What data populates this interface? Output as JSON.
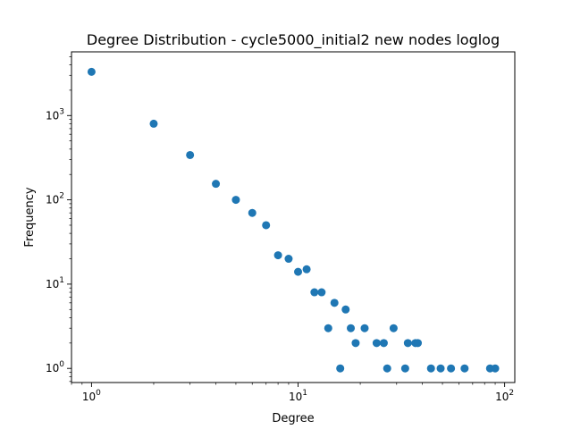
{
  "chart_data": {
    "type": "scatter",
    "title": "Degree Distribution - cycle5000_initial2 new nodes loglog",
    "xlabel": "Degree",
    "ylabel": "Frequency",
    "xscale": "log",
    "yscale": "log",
    "xlim": [
      0.8,
      112
    ],
    "ylim": [
      0.68,
      5700
    ],
    "x_ticks": [
      {
        "value": 1,
        "base": "10",
        "exp": "0"
      },
      {
        "value": 10,
        "base": "10",
        "exp": "1"
      },
      {
        "value": 100,
        "base": "10",
        "exp": "2"
      }
    ],
    "y_ticks": [
      {
        "value": 1,
        "base": "10",
        "exp": "0"
      },
      {
        "value": 10,
        "base": "10",
        "exp": "1"
      },
      {
        "value": 100,
        "base": "10",
        "exp": "2"
      },
      {
        "value": 1000,
        "base": "10",
        "exp": "3"
      }
    ],
    "marker_color": "#1f77b4",
    "grid": false,
    "points": [
      [
        1,
        3300
      ],
      [
        2,
        800
      ],
      [
        3,
        340
      ],
      [
        4,
        155
      ],
      [
        5,
        100
      ],
      [
        6,
        70
      ],
      [
        7,
        50
      ],
      [
        8,
        22
      ],
      [
        9,
        20
      ],
      [
        10,
        14
      ],
      [
        11,
        15
      ],
      [
        12,
        8
      ],
      [
        13,
        8
      ],
      [
        14,
        3
      ],
      [
        15,
        6
      ],
      [
        16,
        1
      ],
      [
        17,
        5
      ],
      [
        18,
        3
      ],
      [
        19,
        2
      ],
      [
        21,
        3
      ],
      [
        24,
        2
      ],
      [
        26,
        2
      ],
      [
        27,
        1
      ],
      [
        29,
        3
      ],
      [
        33,
        1
      ],
      [
        34,
        2
      ],
      [
        37,
        2
      ],
      [
        38,
        2
      ],
      [
        44,
        1
      ],
      [
        49,
        1
      ],
      [
        55,
        1
      ],
      [
        64,
        1
      ],
      [
        85,
        1
      ],
      [
        90,
        1
      ]
    ]
  }
}
